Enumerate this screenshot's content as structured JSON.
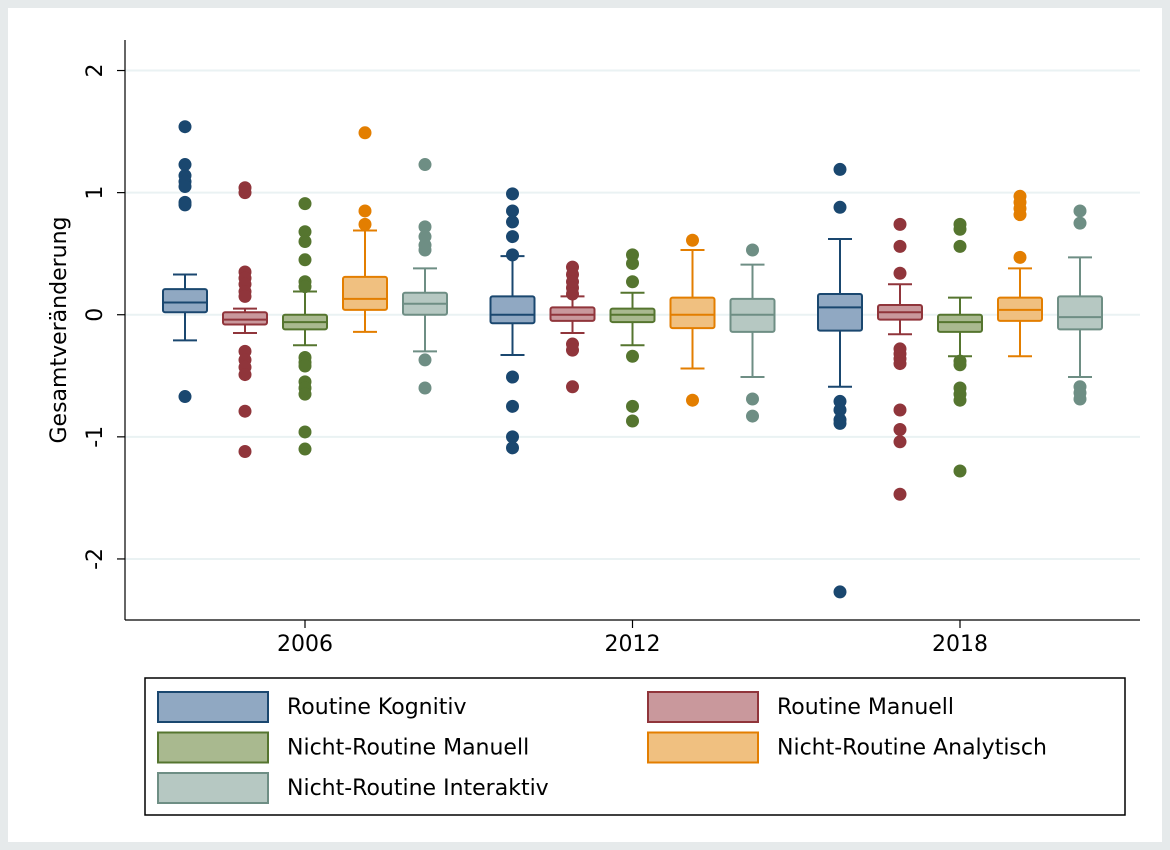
{
  "chart_data": {
    "type": "box",
    "ylabel": "Gesamtveränderung",
    "categories": [
      "2006",
      "2012",
      "2018"
    ],
    "ylim": [
      -2.5,
      2.25
    ],
    "yticks": [
      -2,
      -1,
      0,
      1,
      2
    ],
    "grid": true,
    "series": [
      {
        "name": "Routine Kognitiv",
        "color": "#1a476f",
        "fill": "#90a8c2",
        "boxes": [
          {
            "q1": 0.02,
            "median": 0.1,
            "q3": 0.21,
            "whisker_low": -0.21,
            "whisker_high": 0.33,
            "outliers": [
              1.54,
              1.23,
              1.14,
              1.09,
              1.05,
              0.92,
              0.9,
              -0.67
            ]
          },
          {
            "q1": -0.07,
            "median": 0,
            "q3": 0.15,
            "whisker_low": -0.33,
            "whisker_high": 0.48,
            "outliers": [
              0.99,
              0.85,
              0.76,
              0.64,
              0.49,
              -0.51,
              -0.75,
              -1.0,
              -1.09
            ]
          },
          {
            "q1": -0.13,
            "median": 0.06,
            "q3": 0.17,
            "whisker_low": -0.59,
            "whisker_high": 0.62,
            "outliers": [
              1.19,
              0.88,
              -0.71,
              -0.78,
              -0.86,
              -0.89,
              -2.27
            ]
          }
        ]
      },
      {
        "name": "Routine Manuell",
        "color": "#90353b",
        "fill": "#c9989c",
        "boxes": [
          {
            "q1": -0.08,
            "median": -0.04,
            "q3": 0.02,
            "whisker_low": -0.15,
            "whisker_high": 0.05,
            "outliers": [
              1.04,
              1.0,
              0.35,
              0.3,
              0.25,
              0.19,
              0.15,
              -0.3,
              -0.37,
              -0.43,
              -0.49,
              -0.79,
              -1.12
            ]
          },
          {
            "q1": -0.05,
            "median": 0,
            "q3": 0.06,
            "whisker_low": -0.15,
            "whisker_high": 0.15,
            "outliers": [
              0.39,
              0.33,
              0.27,
              0.22,
              0.17,
              -0.24,
              -0.29,
              -0.59
            ]
          },
          {
            "q1": -0.04,
            "median": 0.02,
            "q3": 0.08,
            "whisker_low": -0.16,
            "whisker_high": 0.25,
            "outliers": [
              0.74,
              0.56,
              0.34,
              -0.28,
              -0.32,
              -0.36,
              -0.4,
              -0.78,
              -0.94,
              -1.04,
              -1.47
            ]
          }
        ]
      },
      {
        "name": "Nicht-Routine Manuell",
        "color": "#55752f",
        "fill": "#a9b98f",
        "boxes": [
          {
            "q1": -0.12,
            "median": -0.06,
            "q3": 0,
            "whisker_low": -0.25,
            "whisker_high": 0.19,
            "outliers": [
              0.91,
              0.68,
              0.6,
              0.45,
              0.27,
              0.23,
              -0.35,
              -0.39,
              -0.42,
              -0.55,
              -0.6,
              -0.65,
              -0.96,
              -1.1
            ]
          },
          {
            "q1": -0.06,
            "median": 0,
            "q3": 0.05,
            "whisker_low": -0.25,
            "whisker_high": 0.18,
            "outliers": [
              0.49,
              0.42,
              0.27,
              -0.34,
              -0.75,
              -0.87
            ]
          },
          {
            "q1": -0.14,
            "median": -0.06,
            "q3": 0,
            "whisker_low": -0.34,
            "whisker_high": 0.14,
            "outliers": [
              0.74,
              0.7,
              0.56,
              -0.38,
              -0.41,
              -0.6,
              -0.65,
              -0.7,
              -1.28
            ]
          }
        ]
      },
      {
        "name": "Nicht-Routine Analytisch",
        "color": "#e37e00",
        "fill": "#f0c080",
        "boxes": [
          {
            "q1": 0.04,
            "median": 0.13,
            "q3": 0.31,
            "whisker_low": -0.14,
            "whisker_high": 0.69,
            "outliers": [
              1.49,
              0.85,
              0.74
            ]
          },
          {
            "q1": -0.11,
            "median": 0,
            "q3": 0.14,
            "whisker_low": -0.44,
            "whisker_high": 0.53,
            "outliers": [
              0.61,
              -0.7
            ]
          },
          {
            "q1": -0.05,
            "median": 0.04,
            "q3": 0.14,
            "whisker_low": -0.34,
            "whisker_high": 0.38,
            "outliers": [
              0.97,
              0.92,
              0.87,
              0.82,
              0.47
            ]
          }
        ]
      },
      {
        "name": "Nicht-Routine Interaktiv",
        "color": "#6e8e84",
        "fill": "#b6c8c2",
        "boxes": [
          {
            "q1": 0,
            "median": 0.09,
            "q3": 0.18,
            "whisker_low": -0.3,
            "whisker_high": 0.38,
            "outliers": [
              1.23,
              0.72,
              0.64,
              0.57,
              0.53,
              -0.37,
              -0.6
            ]
          },
          {
            "q1": -0.14,
            "median": 0,
            "q3": 0.13,
            "whisker_low": -0.51,
            "whisker_high": 0.41,
            "outliers": [
              0.53,
              -0.69,
              -0.83
            ]
          },
          {
            "q1": -0.12,
            "median": -0.02,
            "q3": 0.15,
            "whisker_low": -0.51,
            "whisker_high": 0.47,
            "outliers": [
              0.85,
              0.75,
              -0.59,
              -0.64,
              -0.69
            ]
          }
        ]
      }
    ]
  }
}
